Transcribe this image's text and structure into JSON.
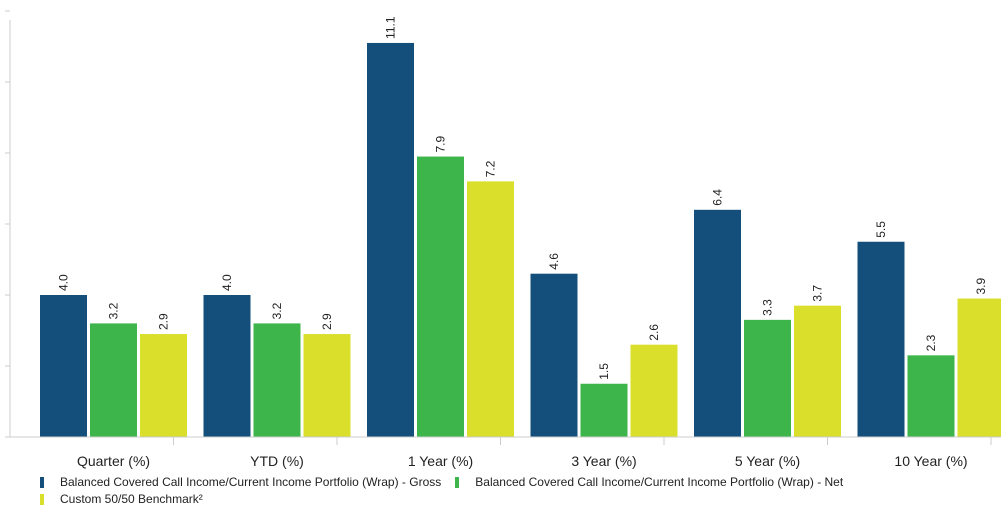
{
  "chart_data": {
    "type": "bar",
    "categories": [
      "Quarter (%)",
      "YTD (%)",
      "1 Year (%)",
      "3 Year (%)",
      "5 Year (%)",
      "10 Year (%)"
    ],
    "series": [
      {
        "name": "Balanced Covered Call Income/Current Income Portfolio (Wrap) - Gross",
        "color": "#134f7a",
        "values": [
          4.0,
          4.0,
          11.1,
          4.6,
          6.4,
          5.5
        ],
        "labels": [
          "4.0",
          "4.0",
          "11.1",
          "4.6",
          "6.4",
          "5.5"
        ]
      },
      {
        "name": "Balanced Covered Call Income/Current Income Portfolio (Wrap) - Net",
        "color": "#3db54a",
        "values": [
          3.2,
          3.2,
          7.9,
          1.5,
          3.3,
          2.3
        ],
        "labels": [
          "3.2",
          "3.2",
          "7.9",
          "1.5",
          "3.3",
          "2.3"
        ]
      },
      {
        "name": "Custom 50/50 Benchmark²",
        "color": "#d9df2a",
        "values": [
          2.9,
          2.9,
          7.2,
          2.6,
          3.7,
          3.9
        ],
        "labels": [
          "2.9",
          "2.9",
          "7.2",
          "2.6",
          "3.7",
          "3.9"
        ]
      }
    ],
    "ylim": [
      0,
      12
    ],
    "y_ticks": [
      0,
      2,
      4,
      6,
      8,
      10,
      12
    ],
    "y_tick_labels_visible": false,
    "grid": false,
    "legend_position": "bottom"
  }
}
